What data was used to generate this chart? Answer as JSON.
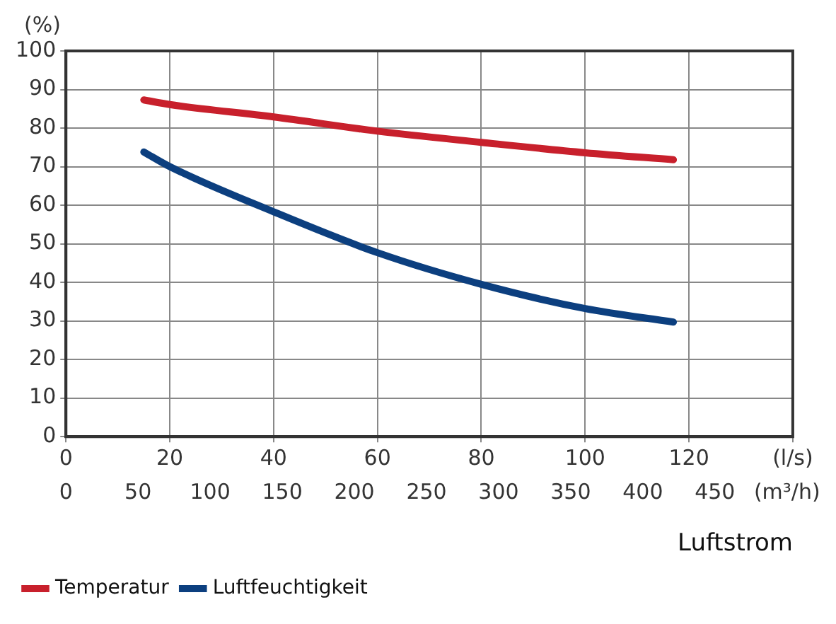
{
  "chart_data": {
    "type": "line",
    "xlabel": "Luftstrom",
    "ylabel": "(%)",
    "xlim": [
      0,
      140
    ],
    "xticks": [
      0,
      20,
      40,
      60,
      80,
      100,
      120,
      {
        "value": 140,
        "label": "(l/s)"
      }
    ],
    "x2lim": [
      0,
      504
    ],
    "x2ticks": [
      0,
      50,
      100,
      150,
      200,
      250,
      300,
      350,
      400,
      450,
      {
        "value": 500,
        "label": "(m³/h)"
      }
    ],
    "ylim": [
      0,
      100
    ],
    "yticks": [
      0,
      10,
      20,
      30,
      40,
      50,
      60,
      70,
      80,
      90,
      100
    ],
    "grid": true,
    "legend": "bottom left",
    "marker": "none",
    "line_style": "solid",
    "series": [
      {
        "name": "Temperatur",
        "color": "#c8202c",
        "x": [
          15,
          20,
          40,
          60,
          80,
          100,
          117
        ],
        "values": [
          87.3,
          86.1,
          82.9,
          79.2,
          76.3,
          73.6,
          71.8
        ]
      },
      {
        "name": "Luftfeuchtigkeit",
        "color": "#0c3f7f",
        "x": [
          15,
          20,
          40,
          60,
          80,
          100,
          117
        ],
        "values": [
          73.8,
          70.0,
          58.3,
          47.7,
          39.5,
          33.2,
          29.7
        ]
      }
    ]
  }
}
